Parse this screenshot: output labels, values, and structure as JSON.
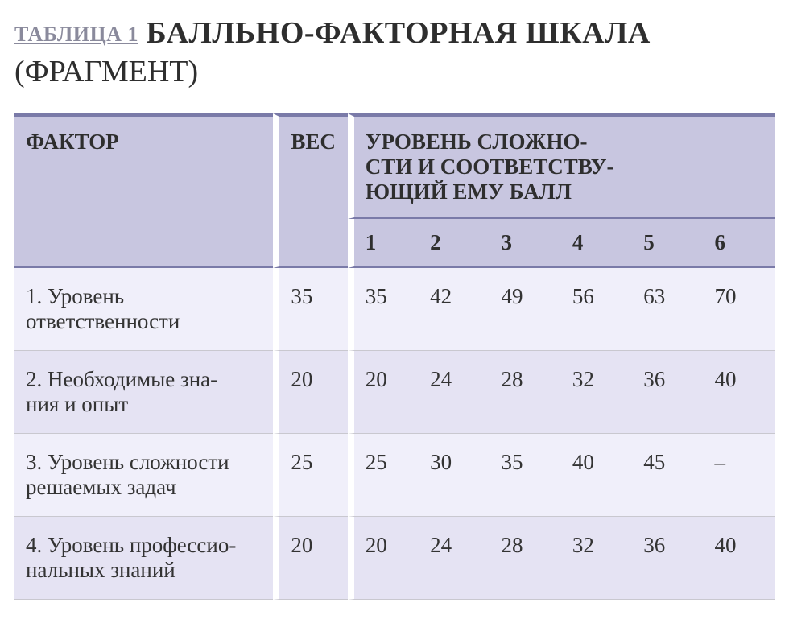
{
  "heading": {
    "label_prefix": "ТАБЛИЦА 1",
    "title_strong": "БАЛЛЬНО-ФАКТОРНАЯ ШКАЛА",
    "title_light": "(ФРАГМЕНТ)"
  },
  "table": {
    "header": {
      "factor": "ФАКТОР",
      "weight": "ВЕС",
      "levels_caption": "УРОВЕНЬ СЛОЖНО-\nСТИ И СООТВЕТСТВУ-\nЮЩИЙ ЕМУ БАЛЛ",
      "level_nums": [
        "1",
        "2",
        "3",
        "4",
        "5",
        "6"
      ]
    },
    "rows": [
      {
        "factor": "1. Уровень ответственности",
        "weight": "35",
        "levels": [
          "35",
          "42",
          "49",
          "56",
          "63",
          "70"
        ]
      },
      {
        "factor": "2. Необходимые зна-\nния и опыт",
        "weight": "20",
        "levels": [
          "20",
          "24",
          "28",
          "32",
          "36",
          "40"
        ]
      },
      {
        "factor": "3. Уровень сложности решаемых задач",
        "weight": "25",
        "levels": [
          "25",
          "30",
          "35",
          "40",
          "45",
          "–"
        ]
      },
      {
        "factor": "4. Уровень профессио-\nнальных знаний",
        "weight": "20",
        "levels": [
          "20",
          "24",
          "28",
          "32",
          "36",
          "40"
        ]
      }
    ]
  },
  "colors": {
    "header_bg": "#c8c6e0",
    "header_border": "#7a7aa8",
    "row_a": "#f0effa",
    "row_b": "#e5e3f3",
    "row_divider": "#c9c8cf",
    "label_prefix": "#8a8a9c",
    "text": "#2e2e2e"
  }
}
